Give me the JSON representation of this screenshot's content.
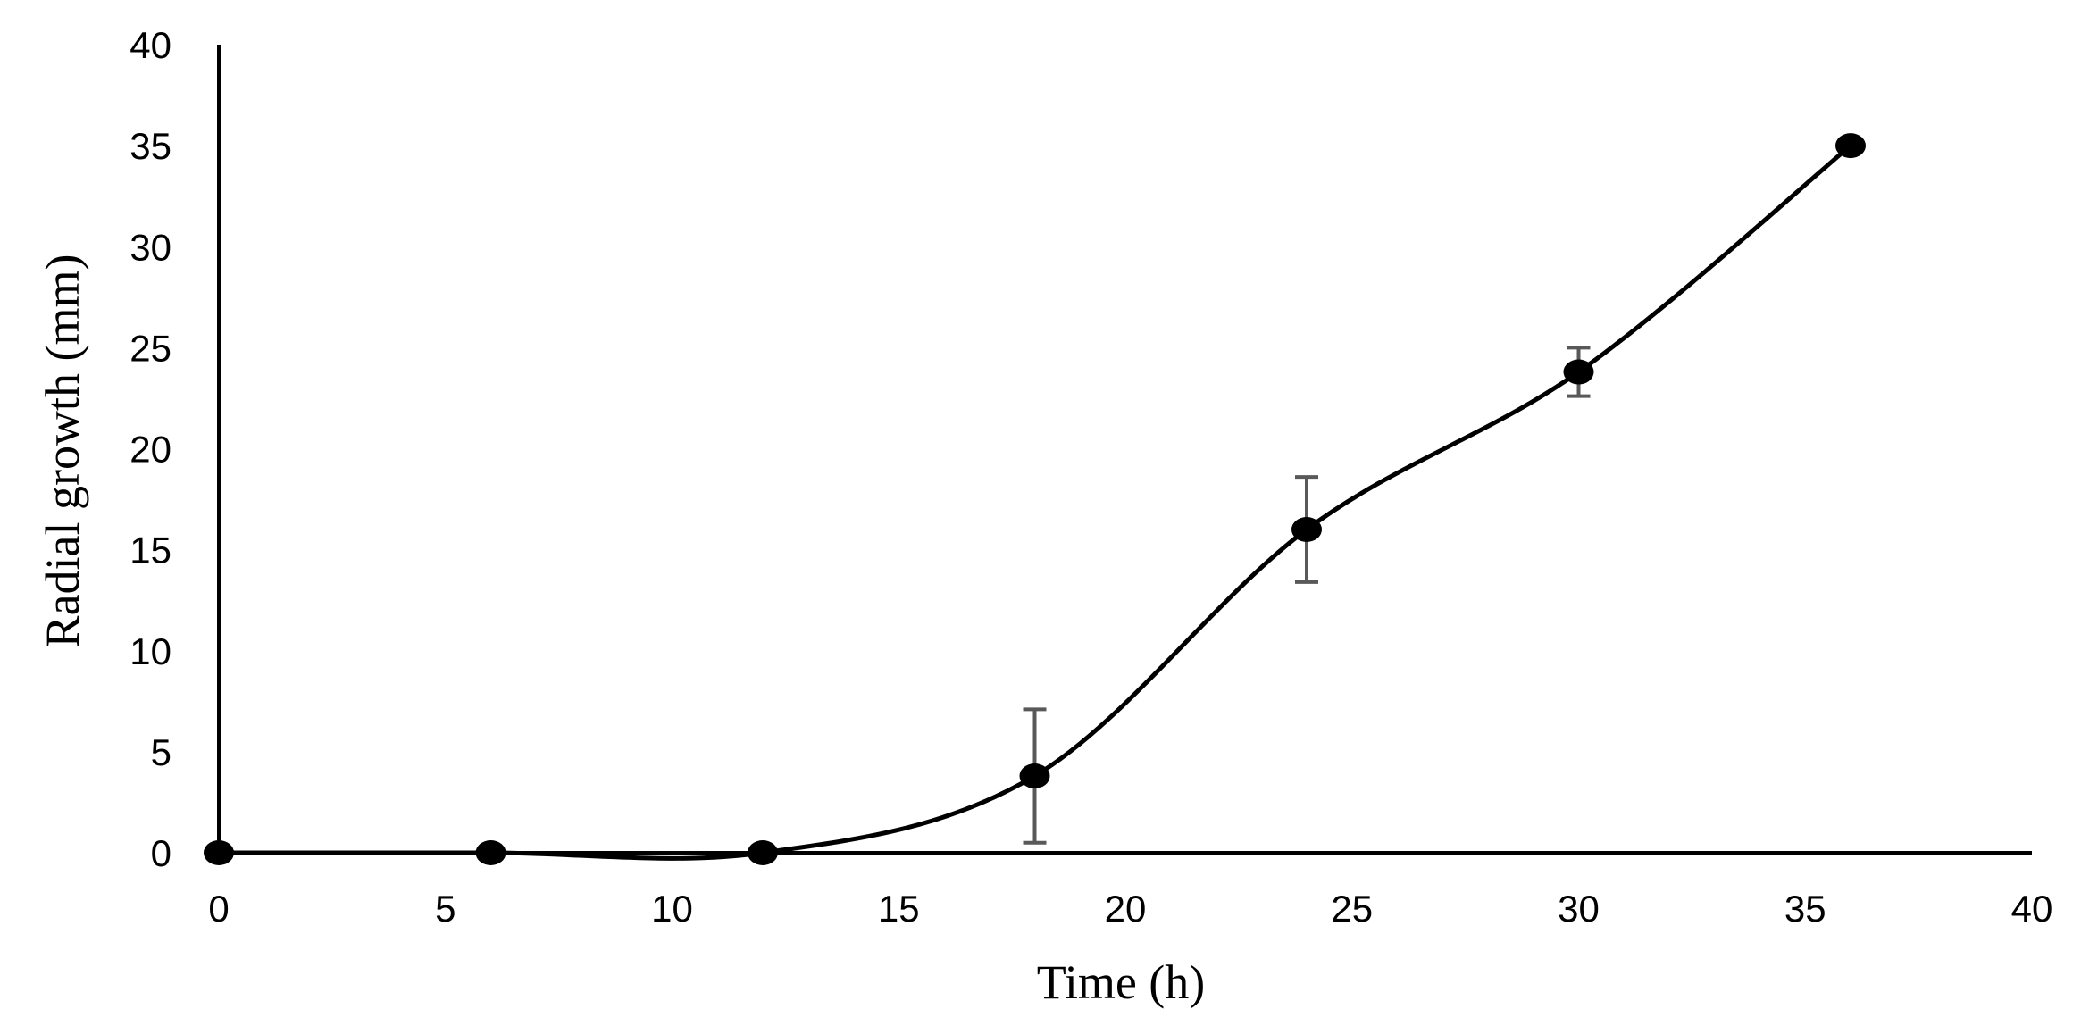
{
  "chart_data": {
    "type": "line",
    "title": "",
    "xlabel": "Time (h)",
    "ylabel": "Radial growth (mm)",
    "xlim": [
      0,
      40
    ],
    "ylim": [
      0,
      40
    ],
    "xticks": [
      0,
      5,
      10,
      15,
      20,
      25,
      30,
      35,
      40
    ],
    "yticks": [
      0,
      5,
      10,
      15,
      20,
      25,
      30,
      35,
      40
    ],
    "grid": false,
    "legend": "none",
    "smoothed": true,
    "series": [
      {
        "name": "Radial growth",
        "color": "#000000",
        "errorbar_color": "#595959",
        "points": [
          {
            "x": 0,
            "y": 0,
            "err": 0
          },
          {
            "x": 6,
            "y": 0,
            "err": 0
          },
          {
            "x": 12,
            "y": 0,
            "err": 0
          },
          {
            "x": 18,
            "y": 3.8,
            "err": 3.3
          },
          {
            "x": 24,
            "y": 16,
            "err": 2.6
          },
          {
            "x": 30,
            "y": 23.8,
            "err": 1.2
          },
          {
            "x": 36,
            "y": 35,
            "err": 0
          }
        ]
      }
    ]
  }
}
